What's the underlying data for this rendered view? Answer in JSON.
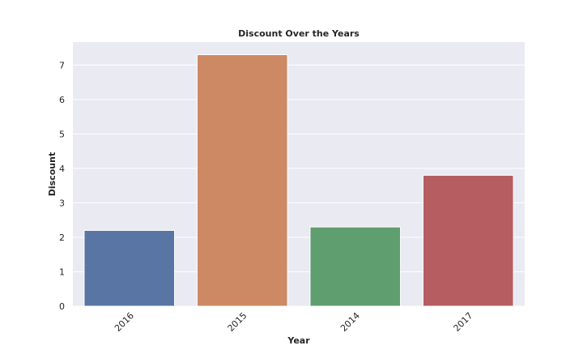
{
  "chart_data": {
    "type": "bar",
    "title": "Discount Over the Years",
    "xlabel": "Year",
    "ylabel": "Discount",
    "categories": [
      "2016",
      "2015",
      "2014",
      "2017"
    ],
    "values": [
      2.2,
      7.3,
      2.3,
      3.8
    ],
    "colors": [
      "#5875a4",
      "#cc8963",
      "#5f9e6e",
      "#b55d60"
    ],
    "yticks": [
      0,
      1,
      2,
      3,
      4,
      5,
      6,
      7
    ],
    "ylim": [
      0,
      7.665
    ],
    "grid": true,
    "background_color": "#eaeaf2",
    "grid_color": "#ffffff"
  }
}
